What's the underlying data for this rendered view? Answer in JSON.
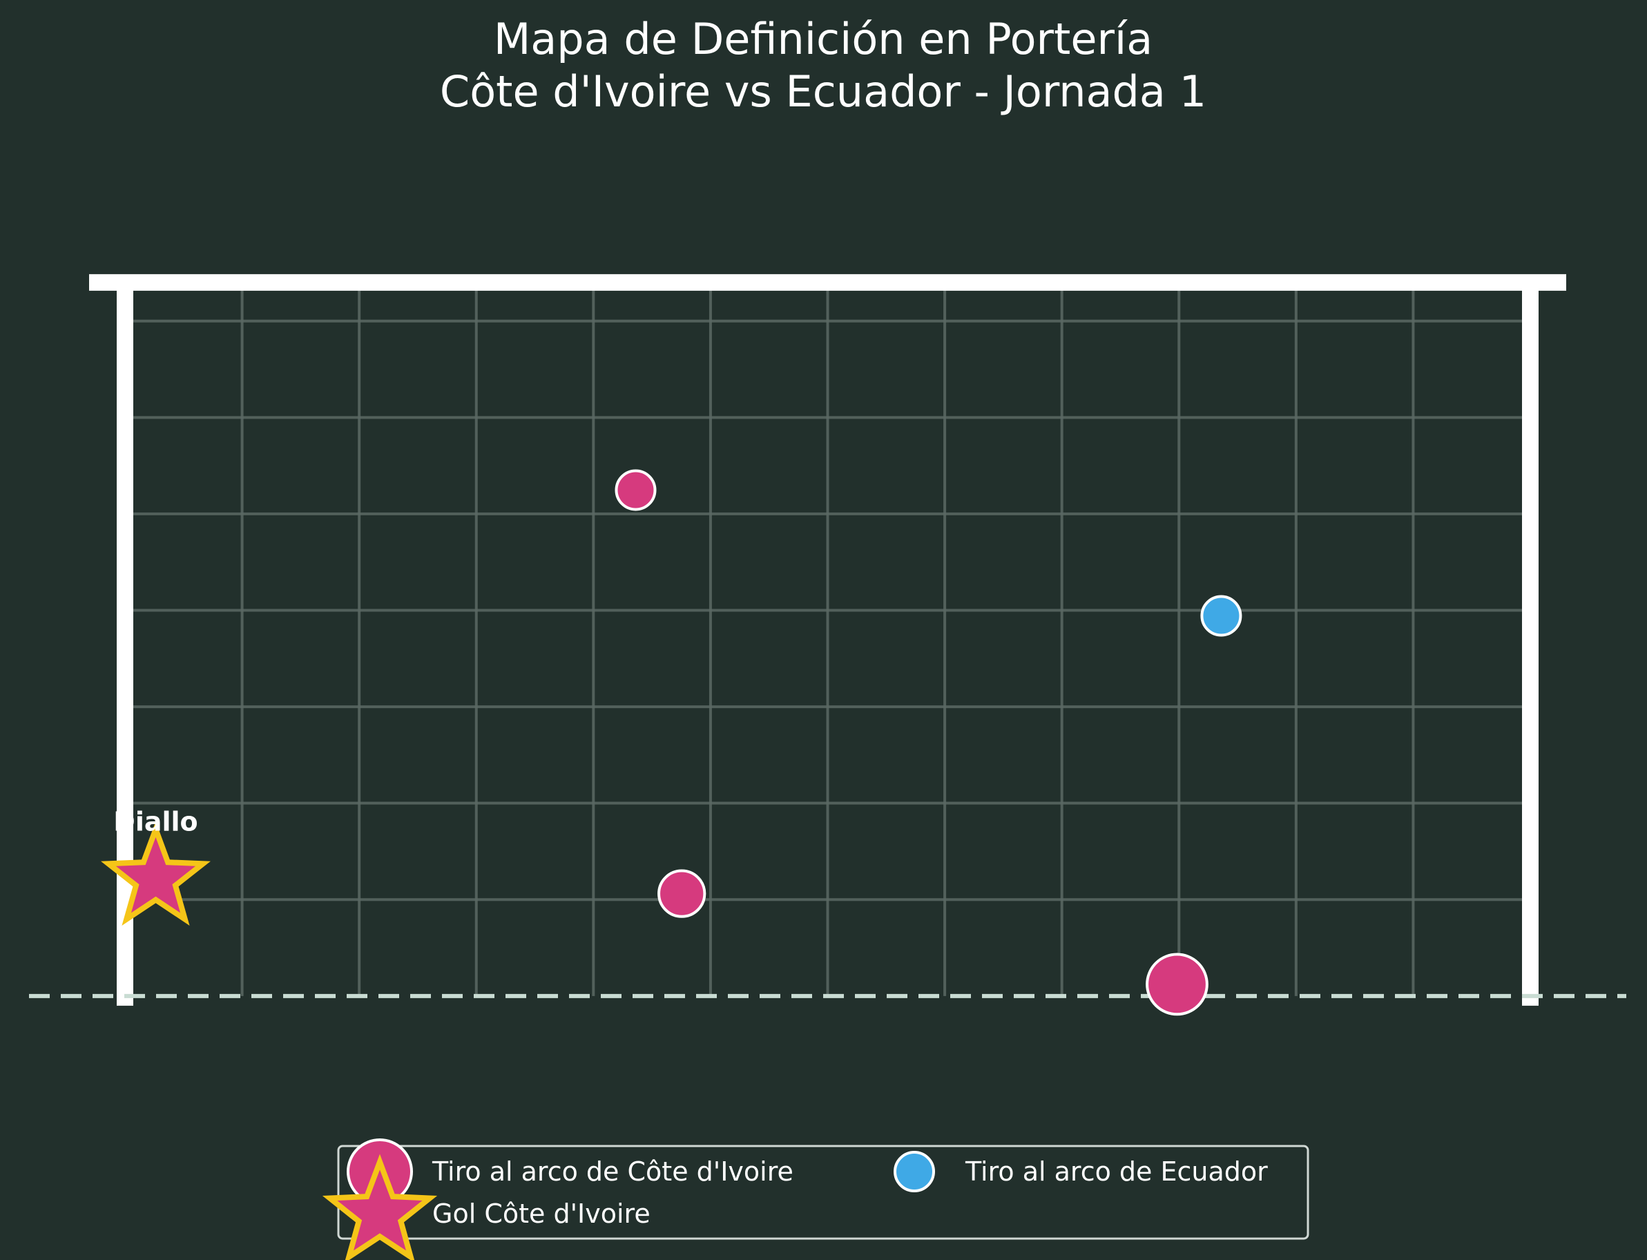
{
  "chart_data": {
    "type": "scatter",
    "title": [
      "Mapa de Definición en Portería",
      "Côte d'Ivoire vs Ecuador - Jornada 1"
    ],
    "xlabel": "",
    "ylabel": "",
    "xlim": [
      -0.5,
      7.82
    ],
    "ylim": [
      -0.35,
      2.65
    ],
    "grid": true,
    "goal": {
      "x": [
        0,
        7.32
      ],
      "y": [
        0,
        2.44
      ]
    },
    "colors": {
      "background": "#22302c",
      "ivory_coast": "#d63a7e",
      "ecuador": "#3fa9e6",
      "goal_edge": "#f5c518",
      "frame": "#ffffff",
      "net": "#5a6964",
      "goal_line": "#c9dcd3"
    },
    "series": [
      {
        "name": "Tiro al arco de Côte d'Ivoire",
        "marker": "circle",
        "color": "#d63a7e",
        "points": [
          {
            "x": 2.66,
            "y": 1.73,
            "size": 1
          },
          {
            "x": 2.9,
            "y": 0.35,
            "size": 1.4
          },
          {
            "x": 5.48,
            "y": 0.04,
            "size": 2.4
          }
        ]
      },
      {
        "name": "Tiro al arco de Ecuador",
        "marker": "circle",
        "color": "#3fa9e6",
        "points": [
          {
            "x": 5.71,
            "y": 1.3,
            "size": 1
          }
        ]
      },
      {
        "name": "Gol Côte d'Ivoire",
        "marker": "star",
        "color": "#d63a7e",
        "points": [
          {
            "x": 0.16,
            "y": 0.4,
            "size": 1,
            "label": "Diallo"
          }
        ]
      }
    ],
    "legend": {
      "position": "bottom-center",
      "ncol": 2
    }
  }
}
